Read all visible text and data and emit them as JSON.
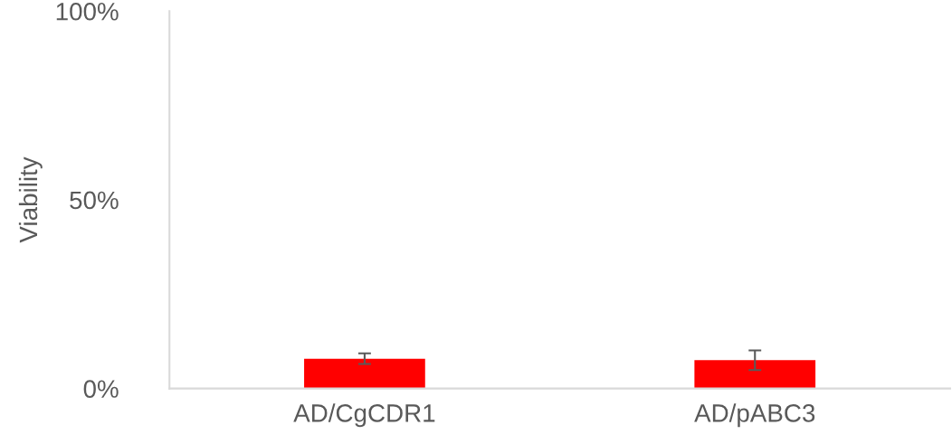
{
  "chart_data": {
    "type": "bar",
    "ylabel": "Viability",
    "categories": [
      "AD/CgCDR1",
      "AD/pABC3"
    ],
    "values": [
      7.9,
      7.5
    ],
    "errors": [
      1.4,
      2.6
    ],
    "color": "#ff0000",
    "ylim": [
      0,
      100
    ],
    "yticks": [
      {
        "value": 0,
        "label": "0%"
      },
      {
        "value": 50,
        "label": "50%"
      },
      {
        "value": 100,
        "label": "100%"
      }
    ],
    "grid": false,
    "legend": false
  }
}
